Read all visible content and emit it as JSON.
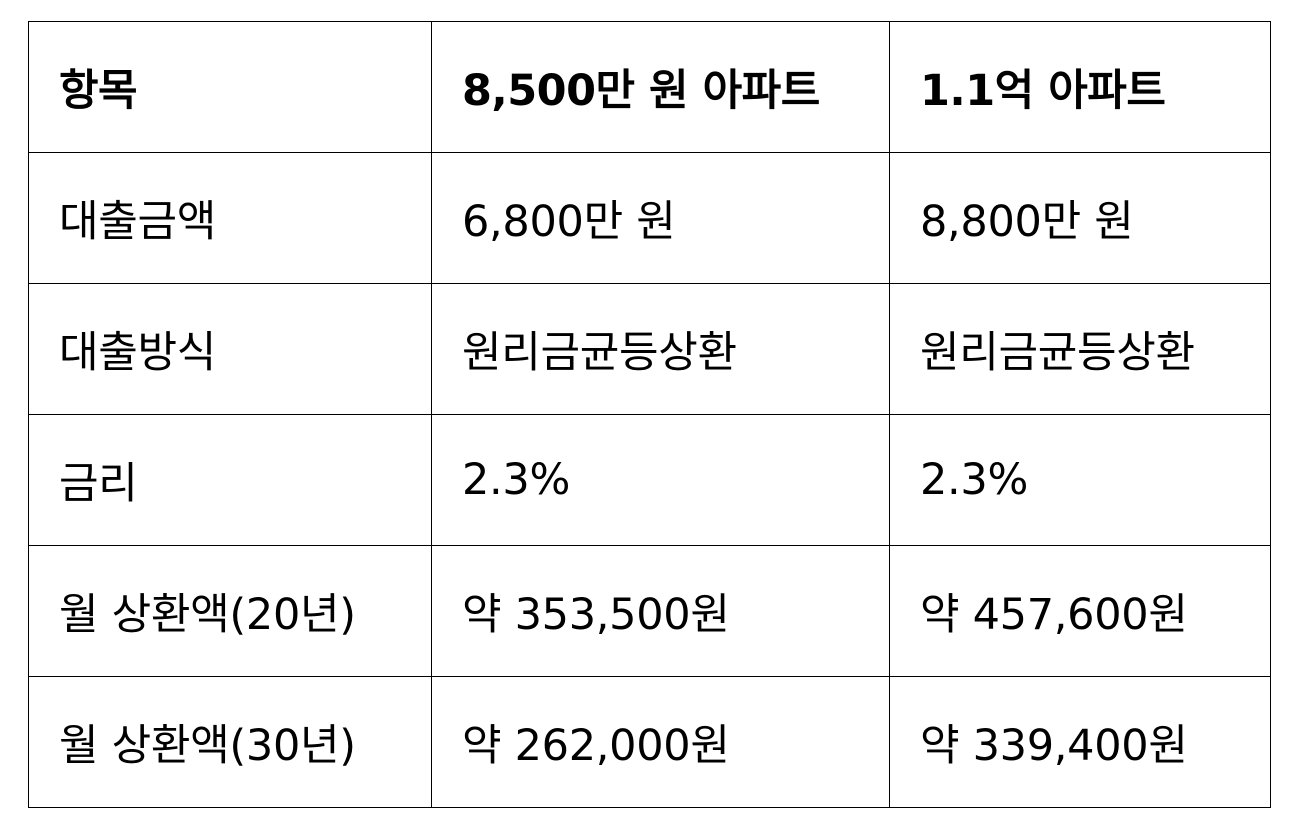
{
  "table": {
    "headers": [
      "항목",
      "8,500만 원 아파트",
      "1.1억 아파트"
    ],
    "rows": [
      [
        "대출금액",
        "6,800만 원",
        "8,800만 원"
      ],
      [
        "대출방식",
        "원리금균등상환",
        "원리금균등상환"
      ],
      [
        "금리",
        "2.3%",
        "2.3%"
      ],
      [
        "월 상환액(20년)",
        "약 353,500원",
        "약 457,600원"
      ],
      [
        "월 상환액(30년)",
        "약 262,000원",
        "약 339,400원"
      ]
    ]
  }
}
